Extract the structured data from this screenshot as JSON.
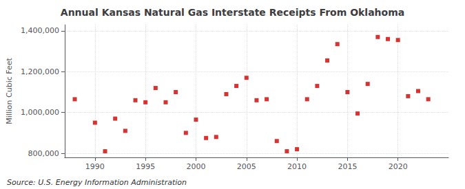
{
  "chart_data": {
    "type": "scatter",
    "title": "Annual Kansas Natural Gas Interstate Receipts From Oklahoma",
    "ylabel": "Million Cubic Feet",
    "annotations": [
      "Source: U.S. Energy Information Administration"
    ],
    "x": [
      1988,
      1990,
      1991,
      1992,
      1993,
      1994,
      1995,
      1996,
      1997,
      1998,
      1999,
      2000,
      2001,
      2002,
      2003,
      2004,
      2005,
      2006,
      2007,
      2008,
      2009,
      2010,
      2011,
      2012,
      2013,
      2014,
      2015,
      2016,
      2017,
      2018,
      2019,
      2020,
      2021,
      2022,
      2023
    ],
    "values": [
      1065000,
      950000,
      810000,
      970000,
      910000,
      1060000,
      1050000,
      1120000,
      1050000,
      1100000,
      900000,
      965000,
      875000,
      880000,
      1090000,
      1130000,
      1170000,
      1060000,
      1065000,
      860000,
      810000,
      820000,
      1065000,
      1130000,
      1255000,
      1335000,
      1100000,
      995000,
      1140000,
      1370000,
      1360000,
      1355000,
      1080000,
      1105000,
      1065000
    ],
    "color": "#cc0000",
    "marker": "square",
    "xlim": [
      1987,
      2025
    ],
    "xticks": [
      1990,
      1995,
      2000,
      2005,
      2010,
      2015,
      2020
    ],
    "ylim": [
      780000,
      1430000
    ],
    "yticks": [
      {
        "value": 800000,
        "label": "800,000"
      },
      {
        "value": 1000000,
        "label": "1,000,000"
      },
      {
        "value": 1200000,
        "label": "1,200,000"
      },
      {
        "value": 1400000,
        "label": "1,400,000"
      }
    ],
    "grid": true
  }
}
